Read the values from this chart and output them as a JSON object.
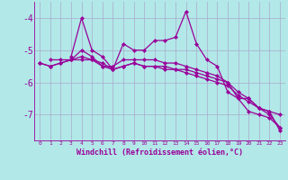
{
  "xlabel": "Windchill (Refroidissement éolien,°C)",
  "background_color": "#b2e8e8",
  "line_color": "#990099",
  "grid_color": "#aaaacc",
  "x_ticks": [
    0,
    1,
    2,
    3,
    4,
    5,
    6,
    7,
    8,
    9,
    10,
    11,
    12,
    13,
    14,
    15,
    16,
    17,
    18,
    19,
    20,
    21,
    22,
    23
  ],
  "y_ticks": [
    -4,
    -5,
    -6,
    -7
  ],
  "ylim": [
    -7.8,
    -3.5
  ],
  "xlim": [
    -0.5,
    23.5
  ],
  "series": [
    [
      null,
      null,
      null,
      -5.2,
      -4.0,
      -5.0,
      -5.2,
      -5.6,
      -4.8,
      -5.0,
      -5.0,
      -4.7,
      -4.7,
      -4.6,
      -3.8,
      -4.8,
      -5.3,
      -5.5,
      -6.3,
      -6.5,
      -6.9,
      -7.0,
      -7.1,
      -7.4
    ],
    [
      null,
      -5.3,
      -5.3,
      -5.3,
      -5.0,
      -5.2,
      -5.5,
      -5.5,
      -5.3,
      -5.3,
      -5.3,
      -5.3,
      -5.4,
      -5.4,
      -5.5,
      -5.6,
      -5.7,
      -5.8,
      -6.0,
      -6.5,
      -6.5,
      -6.8,
      -6.9,
      -7.0
    ],
    [
      -5.4,
      -5.5,
      -5.4,
      -5.3,
      -5.3,
      -5.3,
      -5.5,
      -5.6,
      -5.5,
      -5.4,
      -5.5,
      -5.5,
      -5.5,
      -5.6,
      -5.6,
      -5.7,
      -5.8,
      -5.9,
      -6.0,
      -6.3,
      -6.5,
      -6.8,
      -6.9,
      -7.5
    ],
    [
      -5.4,
      -5.5,
      -5.4,
      -5.3,
      -5.2,
      -5.3,
      -5.4,
      -5.6,
      -5.5,
      -5.4,
      -5.5,
      -5.5,
      -5.6,
      -5.6,
      -5.7,
      -5.8,
      -5.9,
      -6.0,
      -6.1,
      -6.4,
      -6.6,
      -6.8,
      -7.0,
      -7.4
    ]
  ],
  "ylabel_fontsize": 7,
  "xlabel_fontsize": 6,
  "xtick_fontsize": 4.5,
  "linewidth": 0.9,
  "markersize": 2.2
}
